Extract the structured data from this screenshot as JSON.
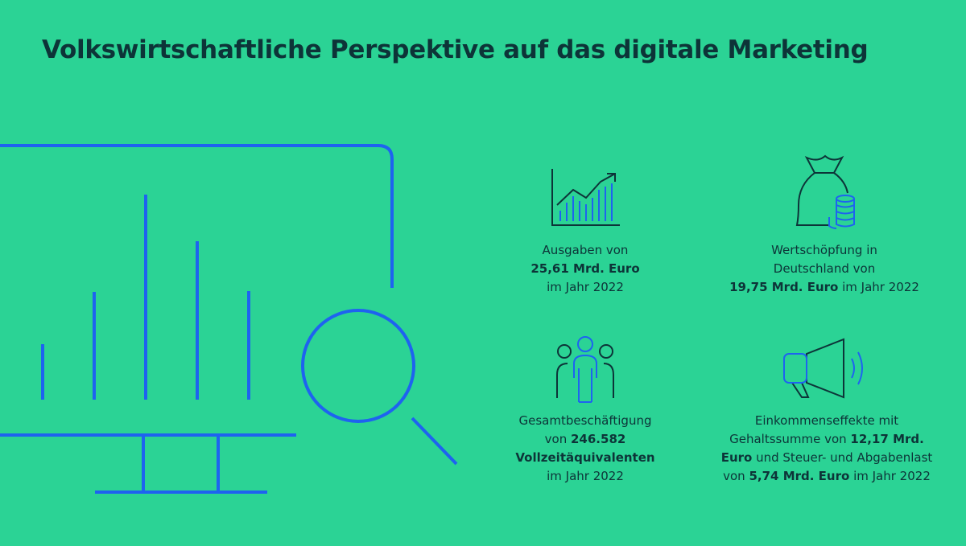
{
  "title": "Volkswirtschaftliche Perspektive auf das digitale Marketing",
  "stats": [
    {
      "lines": [
        [
          {
            "text": "Ausgaben von",
            "bold": false
          }
        ],
        [
          {
            "text": "25,61 Mrd. Euro",
            "bold": true
          }
        ],
        [
          {
            "text": "im Jahr 2022",
            "bold": false
          }
        ]
      ]
    },
    {
      "lines": [
        [
          {
            "text": "Wertschöpfung in",
            "bold": false
          }
        ],
        [
          {
            "text": "Deutschland von",
            "bold": false
          }
        ],
        [
          {
            "text": "19,75 Mrd. Euro",
            "bold": true
          },
          {
            "text": " im Jahr 2022",
            "bold": false
          }
        ]
      ]
    },
    {
      "lines": [
        [
          {
            "text": "Gesamtbeschäftigung",
            "bold": false
          }
        ],
        [
          {
            "text": "von ",
            "bold": false
          },
          {
            "text": "246.582",
            "bold": true
          }
        ],
        [
          {
            "text": "Vollzeitäquivalenten",
            "bold": true
          }
        ],
        [
          {
            "text": "im Jahr 2022",
            "bold": false
          }
        ]
      ]
    },
    {
      "lines": [
        [
          {
            "text": "Einkommenseffekte mit",
            "bold": false
          }
        ],
        [
          {
            "text": "Gehaltssumme von ",
            "bold": false
          },
          {
            "text": "12,17 Mrd.",
            "bold": true
          }
        ],
        [
          {
            "text": "Euro",
            "bold": true
          },
          {
            "text": " und Steuer- und Abgabenlast",
            "bold": false
          }
        ],
        [
          {
            "text": "von ",
            "bold": false
          },
          {
            "text": "5,74 Mrd. Euro",
            "bold": true
          },
          {
            "text": " im Jahr 2022",
            "bold": false
          }
        ]
      ]
    }
  ]
}
